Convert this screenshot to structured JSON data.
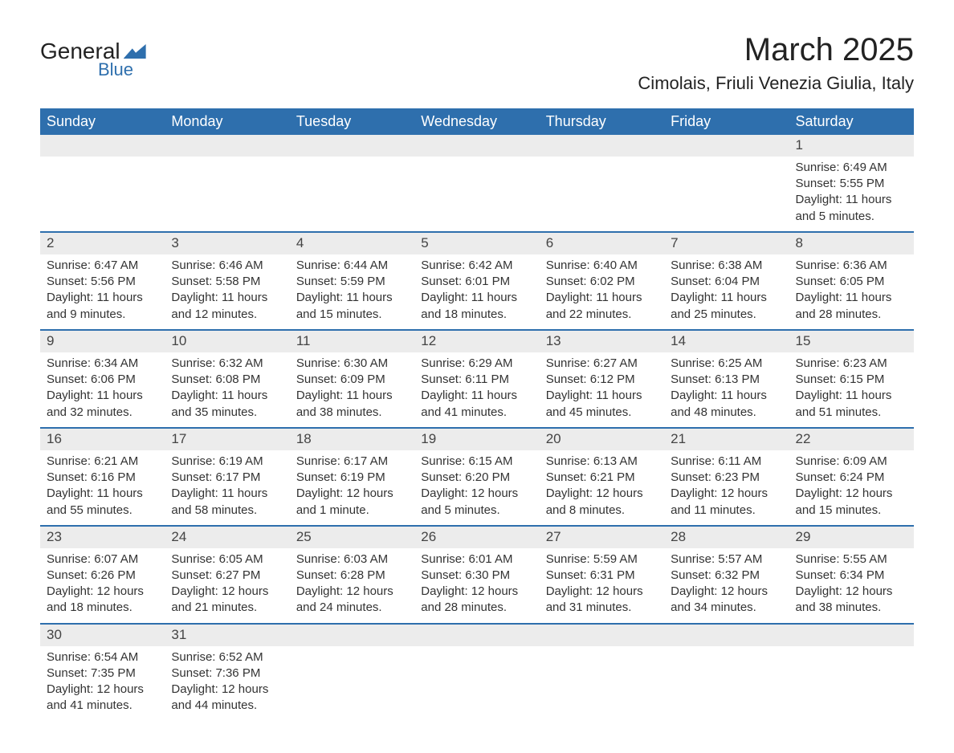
{
  "logo": {
    "text1": "General",
    "text2": "Blue"
  },
  "title": "March 2025",
  "location": "Cimolais, Friuli Venezia Giulia, Italy",
  "colors": {
    "header_bg": "#2e6fad",
    "header_text": "#ffffff",
    "daynum_bg": "#ececec",
    "row_border": "#2e6fad",
    "body_text": "#333333",
    "page_bg": "#ffffff"
  },
  "typography": {
    "title_fontsize": 40,
    "location_fontsize": 22,
    "header_fontsize": 18,
    "cell_fontsize": 15
  },
  "day_headers": [
    "Sunday",
    "Monday",
    "Tuesday",
    "Wednesday",
    "Thursday",
    "Friday",
    "Saturday"
  ],
  "weeks": [
    [
      null,
      null,
      null,
      null,
      null,
      null,
      {
        "n": "1",
        "sunrise": "Sunrise: 6:49 AM",
        "sunset": "Sunset: 5:55 PM",
        "daylight": "Daylight: 11 hours and 5 minutes."
      }
    ],
    [
      {
        "n": "2",
        "sunrise": "Sunrise: 6:47 AM",
        "sunset": "Sunset: 5:56 PM",
        "daylight": "Daylight: 11 hours and 9 minutes."
      },
      {
        "n": "3",
        "sunrise": "Sunrise: 6:46 AM",
        "sunset": "Sunset: 5:58 PM",
        "daylight": "Daylight: 11 hours and 12 minutes."
      },
      {
        "n": "4",
        "sunrise": "Sunrise: 6:44 AM",
        "sunset": "Sunset: 5:59 PM",
        "daylight": "Daylight: 11 hours and 15 minutes."
      },
      {
        "n": "5",
        "sunrise": "Sunrise: 6:42 AM",
        "sunset": "Sunset: 6:01 PM",
        "daylight": "Daylight: 11 hours and 18 minutes."
      },
      {
        "n": "6",
        "sunrise": "Sunrise: 6:40 AM",
        "sunset": "Sunset: 6:02 PM",
        "daylight": "Daylight: 11 hours and 22 minutes."
      },
      {
        "n": "7",
        "sunrise": "Sunrise: 6:38 AM",
        "sunset": "Sunset: 6:04 PM",
        "daylight": "Daylight: 11 hours and 25 minutes."
      },
      {
        "n": "8",
        "sunrise": "Sunrise: 6:36 AM",
        "sunset": "Sunset: 6:05 PM",
        "daylight": "Daylight: 11 hours and 28 minutes."
      }
    ],
    [
      {
        "n": "9",
        "sunrise": "Sunrise: 6:34 AM",
        "sunset": "Sunset: 6:06 PM",
        "daylight": "Daylight: 11 hours and 32 minutes."
      },
      {
        "n": "10",
        "sunrise": "Sunrise: 6:32 AM",
        "sunset": "Sunset: 6:08 PM",
        "daylight": "Daylight: 11 hours and 35 minutes."
      },
      {
        "n": "11",
        "sunrise": "Sunrise: 6:30 AM",
        "sunset": "Sunset: 6:09 PM",
        "daylight": "Daylight: 11 hours and 38 minutes."
      },
      {
        "n": "12",
        "sunrise": "Sunrise: 6:29 AM",
        "sunset": "Sunset: 6:11 PM",
        "daylight": "Daylight: 11 hours and 41 minutes."
      },
      {
        "n": "13",
        "sunrise": "Sunrise: 6:27 AM",
        "sunset": "Sunset: 6:12 PM",
        "daylight": "Daylight: 11 hours and 45 minutes."
      },
      {
        "n": "14",
        "sunrise": "Sunrise: 6:25 AM",
        "sunset": "Sunset: 6:13 PM",
        "daylight": "Daylight: 11 hours and 48 minutes."
      },
      {
        "n": "15",
        "sunrise": "Sunrise: 6:23 AM",
        "sunset": "Sunset: 6:15 PM",
        "daylight": "Daylight: 11 hours and 51 minutes."
      }
    ],
    [
      {
        "n": "16",
        "sunrise": "Sunrise: 6:21 AM",
        "sunset": "Sunset: 6:16 PM",
        "daylight": "Daylight: 11 hours and 55 minutes."
      },
      {
        "n": "17",
        "sunrise": "Sunrise: 6:19 AM",
        "sunset": "Sunset: 6:17 PM",
        "daylight": "Daylight: 11 hours and 58 minutes."
      },
      {
        "n": "18",
        "sunrise": "Sunrise: 6:17 AM",
        "sunset": "Sunset: 6:19 PM",
        "daylight": "Daylight: 12 hours and 1 minute."
      },
      {
        "n": "19",
        "sunrise": "Sunrise: 6:15 AM",
        "sunset": "Sunset: 6:20 PM",
        "daylight": "Daylight: 12 hours and 5 minutes."
      },
      {
        "n": "20",
        "sunrise": "Sunrise: 6:13 AM",
        "sunset": "Sunset: 6:21 PM",
        "daylight": "Daylight: 12 hours and 8 minutes."
      },
      {
        "n": "21",
        "sunrise": "Sunrise: 6:11 AM",
        "sunset": "Sunset: 6:23 PM",
        "daylight": "Daylight: 12 hours and 11 minutes."
      },
      {
        "n": "22",
        "sunrise": "Sunrise: 6:09 AM",
        "sunset": "Sunset: 6:24 PM",
        "daylight": "Daylight: 12 hours and 15 minutes."
      }
    ],
    [
      {
        "n": "23",
        "sunrise": "Sunrise: 6:07 AM",
        "sunset": "Sunset: 6:26 PM",
        "daylight": "Daylight: 12 hours and 18 minutes."
      },
      {
        "n": "24",
        "sunrise": "Sunrise: 6:05 AM",
        "sunset": "Sunset: 6:27 PM",
        "daylight": "Daylight: 12 hours and 21 minutes."
      },
      {
        "n": "25",
        "sunrise": "Sunrise: 6:03 AM",
        "sunset": "Sunset: 6:28 PM",
        "daylight": "Daylight: 12 hours and 24 minutes."
      },
      {
        "n": "26",
        "sunrise": "Sunrise: 6:01 AM",
        "sunset": "Sunset: 6:30 PM",
        "daylight": "Daylight: 12 hours and 28 minutes."
      },
      {
        "n": "27",
        "sunrise": "Sunrise: 5:59 AM",
        "sunset": "Sunset: 6:31 PM",
        "daylight": "Daylight: 12 hours and 31 minutes."
      },
      {
        "n": "28",
        "sunrise": "Sunrise: 5:57 AM",
        "sunset": "Sunset: 6:32 PM",
        "daylight": "Daylight: 12 hours and 34 minutes."
      },
      {
        "n": "29",
        "sunrise": "Sunrise: 5:55 AM",
        "sunset": "Sunset: 6:34 PM",
        "daylight": "Daylight: 12 hours and 38 minutes."
      }
    ],
    [
      {
        "n": "30",
        "sunrise": "Sunrise: 6:54 AM",
        "sunset": "Sunset: 7:35 PM",
        "daylight": "Daylight: 12 hours and 41 minutes."
      },
      {
        "n": "31",
        "sunrise": "Sunrise: 6:52 AM",
        "sunset": "Sunset: 7:36 PM",
        "daylight": "Daylight: 12 hours and 44 minutes."
      },
      null,
      null,
      null,
      null,
      null
    ]
  ]
}
